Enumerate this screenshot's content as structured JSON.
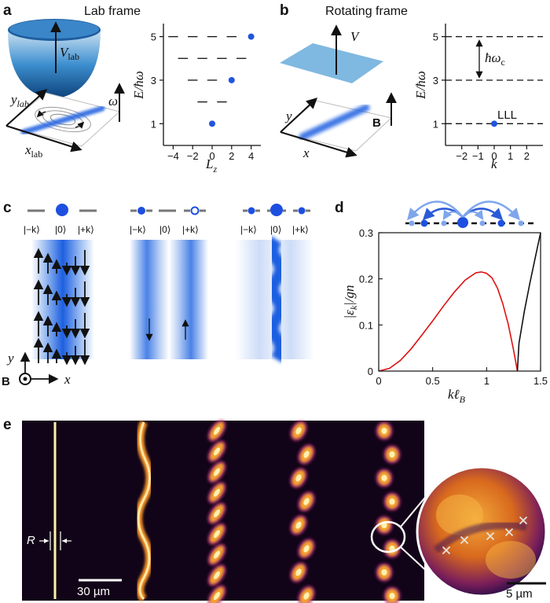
{
  "panels": {
    "a": {
      "letter": "a",
      "title": "Lab frame",
      "v_label": "V",
      "v_sub": "lab",
      "omega_label": "ω",
      "ylab_label": "y",
      "ylab_sub": "lab",
      "xlab_label": "x",
      "xlab_sub": "lab",
      "ylabel": "E/ħω",
      "xlabel": "L",
      "xlabel_sub": "z",
      "yticks": [
        "1",
        "3",
        "5"
      ],
      "xticks": [
        "−4",
        "−2",
        "0",
        "2",
        "4"
      ]
    },
    "b": {
      "letter": "b",
      "title": "Rotating frame",
      "v_label": "V",
      "b_label": "B",
      "y_label": "y",
      "x_label": "x",
      "ylabel": "E/ħω",
      "xlabel": "k",
      "yticks": [
        "1",
        "3",
        "5"
      ],
      "xticks": [
        "−2",
        "−1",
        "0",
        "1",
        "2"
      ],
      "gap_label": "ħω",
      "gap_sub": "c",
      "lll_label": "LLL"
    },
    "c": {
      "letter": "c",
      "kets": [
        "|−k⟩",
        "|0⟩",
        "|+k⟩"
      ],
      "y_label": "y",
      "x_label": "x",
      "b_label": "B"
    },
    "d": {
      "letter": "d",
      "ylabel": "|ε",
      "ylabel_sub": "k",
      "ylabel_tail": "|/gn",
      "xlabel": "kℓ",
      "xlabel_sub": "B",
      "yticks": [
        "0",
        "0.1",
        "0.2",
        "0.3"
      ],
      "xticks": [
        "0",
        "0.5",
        "1",
        "1.5"
      ]
    },
    "e": {
      "letter": "e",
      "r_label": "R",
      "scale_main": "30 µm",
      "scale_inset": "5 µm"
    }
  },
  "chart_data": [
    {
      "type": "scatter",
      "panel": "a",
      "xlabel": "L_z",
      "ylabel": "E/ħω",
      "xlim": [
        -5,
        5
      ],
      "ylim": [
        0,
        5.6
      ],
      "levels": [
        {
          "E": 1,
          "dashes": [
            [
              0,
              0
            ]
          ],
          "point": 0
        },
        {
          "E": 2,
          "dashes": [
            [
              -1.5,
              -0.5
            ],
            [
              0.5,
              1.5
            ]
          ],
          "point": null
        },
        {
          "E": 3,
          "dashes": [
            [
              -2.5,
              -1.5
            ],
            [
              -0.5,
              0.5
            ]
          ],
          "point": 2
        },
        {
          "E": 4,
          "dashes": [
            [
              -3.5,
              -2.5
            ],
            [
              -1.5,
              -0.5
            ],
            [
              0.5,
              1.5
            ],
            [
              2.5,
              3.5
            ]
          ],
          "point": null
        },
        {
          "E": 5,
          "dashes": [
            [
              -4.5,
              -3.5
            ],
            [
              -2.5,
              -1.5
            ],
            [
              -0.5,
              0.5
            ],
            [
              1.5,
              2.5
            ]
          ],
          "point": 4
        }
      ],
      "series": [
        {
          "values": [
            [
              0,
              1
            ],
            [
              2,
              3
            ],
            [
              4,
              5
            ]
          ],
          "color": "#2255dd"
        }
      ]
    },
    {
      "type": "scatter",
      "panel": "b",
      "xlabel": "k",
      "ylabel": "E/ħω",
      "xlim": [
        -3,
        3
      ],
      "ylim": [
        0,
        5.6
      ],
      "levels": [
        1,
        3,
        5
      ],
      "series": [
        {
          "values": [
            [
              0,
              1
            ]
          ],
          "color": "#2255dd"
        }
      ]
    },
    {
      "type": "line",
      "panel": "d",
      "xlabel": "kℓ_B",
      "ylabel": "|ε_k|/gn",
      "xlim": [
        0,
        1.5
      ],
      "ylim": [
        0,
        0.3
      ],
      "series": [
        {
          "color": "#dd1111",
          "values": [
            [
              0,
              0
            ],
            [
              0.1,
              0.006
            ],
            [
              0.2,
              0.023
            ],
            [
              0.3,
              0.048
            ],
            [
              0.4,
              0.078
            ],
            [
              0.5,
              0.109
            ],
            [
              0.6,
              0.141
            ],
            [
              0.7,
              0.171
            ],
            [
              0.8,
              0.197
            ],
            [
              0.9,
              0.213
            ],
            [
              0.95,
              0.215
            ],
            [
              1.0,
              0.212
            ],
            [
              1.05,
              0.202
            ],
            [
              1.1,
              0.18
            ],
            [
              1.15,
              0.146
            ],
            [
              1.2,
              0.102
            ],
            [
              1.25,
              0.045
            ],
            [
              1.285,
              0
            ]
          ]
        },
        {
          "color": "#111111",
          "values": [
            [
              1.285,
              0
            ],
            [
              1.3,
              0.06
            ],
            [
              1.35,
              0.13
            ],
            [
              1.4,
              0.19
            ],
            [
              1.45,
              0.245
            ],
            [
              1.5,
              0.3
            ]
          ]
        }
      ]
    }
  ],
  "colors": {
    "blue": "#2255dd",
    "red": "#dd1111",
    "bowl": "#1f6fb5",
    "plane": "#7fb8e0"
  }
}
